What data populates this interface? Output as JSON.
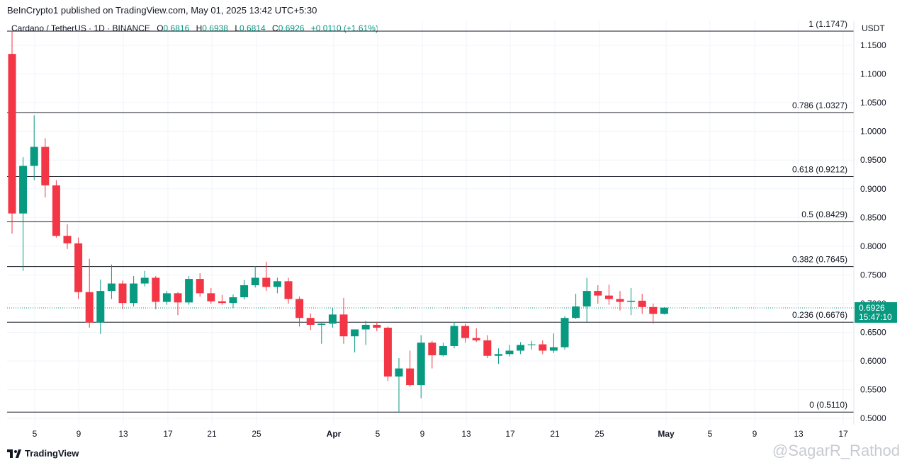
{
  "header": {
    "caption": "BeInCrypto1 published on TradingView.com, May 01, 2025 13:42 UTC+5:30",
    "symbol": "Cardano / TetherUS · 1D · BINANCE",
    "ohlc": {
      "o_label": "O",
      "o": "0.6816",
      "h_label": "H",
      "h": "0.6938",
      "l_label": "L",
      "l": "0.6814",
      "c_label": "C",
      "c": "0.6926",
      "change": "+0.0110 (+1.61%)"
    },
    "unit": "USDT"
  },
  "price_tag": {
    "price": "0.6926",
    "countdown": "15:47:10"
  },
  "footer": {
    "brand": "TradingView",
    "watermark": "@SagarR_Rathod"
  },
  "colors": {
    "up": "#089981",
    "down": "#f23645",
    "fib_line": "#131722",
    "grid": "#f0f3fa"
  },
  "chart_data": {
    "type": "candlestick",
    "y_ticks": [
      "1.1500",
      "1.1000",
      "1.0500",
      "1.0000",
      "0.9500",
      "0.9000",
      "0.8500",
      "0.8000",
      "0.7500",
      "0.7000",
      "0.6500",
      "0.6000",
      "0.5500",
      "0.5000"
    ],
    "ylim": [
      0.493,
      1.2
    ],
    "x_ticks": [
      "5",
      "9",
      "13",
      "17",
      "21",
      "25",
      "Apr",
      "5",
      "9",
      "13",
      "17",
      "21",
      "25",
      "May",
      "5",
      "9",
      "13",
      "17"
    ],
    "fib_levels": [
      {
        "label": "1 (1.1747)",
        "value": 1.1747
      },
      {
        "label": "0.786 (1.0327)",
        "value": 1.0327
      },
      {
        "label": "0.618 (0.9212)",
        "value": 0.9212
      },
      {
        "label": "0.5 (0.8429)",
        "value": 0.8429
      },
      {
        "label": "0.382 (0.7645)",
        "value": 0.7645
      },
      {
        "label": "0.236 (0.6676)",
        "value": 0.6676
      },
      {
        "label": "0 (0.5110)",
        "value": 0.511
      }
    ],
    "current_price": 0.6926,
    "candles": [
      {
        "o": 1.135,
        "h": 1.175,
        "l": 0.822,
        "c": 0.857
      },
      {
        "o": 0.857,
        "h": 0.955,
        "l": 0.757,
        "c": 0.94
      },
      {
        "o": 0.94,
        "h": 1.028,
        "l": 0.915,
        "c": 0.973
      },
      {
        "o": 0.973,
        "h": 0.988,
        "l": 0.885,
        "c": 0.906
      },
      {
        "o": 0.906,
        "h": 0.915,
        "l": 0.815,
        "c": 0.818
      },
      {
        "o": 0.818,
        "h": 0.838,
        "l": 0.795,
        "c": 0.805
      },
      {
        "o": 0.805,
        "h": 0.815,
        "l": 0.708,
        "c": 0.72
      },
      {
        "o": 0.72,
        "h": 0.778,
        "l": 0.658,
        "c": 0.667
      },
      {
        "o": 0.667,
        "h": 0.742,
        "l": 0.647,
        "c": 0.722
      },
      {
        "o": 0.722,
        "h": 0.768,
        "l": 0.708,
        "c": 0.735
      },
      {
        "o": 0.735,
        "h": 0.74,
        "l": 0.69,
        "c": 0.701
      },
      {
        "o": 0.701,
        "h": 0.748,
        "l": 0.695,
        "c": 0.735
      },
      {
        "o": 0.735,
        "h": 0.757,
        "l": 0.73,
        "c": 0.745
      },
      {
        "o": 0.745,
        "h": 0.748,
        "l": 0.69,
        "c": 0.703
      },
      {
        "o": 0.703,
        "h": 0.722,
        "l": 0.698,
        "c": 0.718
      },
      {
        "o": 0.718,
        "h": 0.72,
        "l": 0.68,
        "c": 0.702
      },
      {
        "o": 0.702,
        "h": 0.748,
        "l": 0.698,
        "c": 0.743
      },
      {
        "o": 0.743,
        "h": 0.753,
        "l": 0.712,
        "c": 0.718
      },
      {
        "o": 0.718,
        "h": 0.727,
        "l": 0.7,
        "c": 0.704
      },
      {
        "o": 0.704,
        "h": 0.715,
        "l": 0.698,
        "c": 0.701
      },
      {
        "o": 0.701,
        "h": 0.716,
        "l": 0.692,
        "c": 0.711
      },
      {
        "o": 0.711,
        "h": 0.741,
        "l": 0.707,
        "c": 0.732
      },
      {
        "o": 0.732,
        "h": 0.765,
        "l": 0.728,
        "c": 0.745
      },
      {
        "o": 0.745,
        "h": 0.773,
        "l": 0.722,
        "c": 0.729
      },
      {
        "o": 0.729,
        "h": 0.745,
        "l": 0.718,
        "c": 0.739
      },
      {
        "o": 0.739,
        "h": 0.745,
        "l": 0.7,
        "c": 0.708
      },
      {
        "o": 0.708,
        "h": 0.712,
        "l": 0.66,
        "c": 0.675
      },
      {
        "o": 0.675,
        "h": 0.683,
        "l": 0.654,
        "c": 0.663
      },
      {
        "o": 0.663,
        "h": 0.668,
        "l": 0.63,
        "c": 0.665
      },
      {
        "o": 0.665,
        "h": 0.692,
        "l": 0.658,
        "c": 0.681
      },
      {
        "o": 0.681,
        "h": 0.71,
        "l": 0.63,
        "c": 0.643
      },
      {
        "o": 0.643,
        "h": 0.655,
        "l": 0.615,
        "c": 0.655
      },
      {
        "o": 0.655,
        "h": 0.67,
        "l": 0.628,
        "c": 0.663
      },
      {
        "o": 0.663,
        "h": 0.668,
        "l": 0.652,
        "c": 0.658
      },
      {
        "o": 0.658,
        "h": 0.66,
        "l": 0.565,
        "c": 0.573
      },
      {
        "o": 0.573,
        "h": 0.605,
        "l": 0.51,
        "c": 0.587
      },
      {
        "o": 0.587,
        "h": 0.618,
        "l": 0.555,
        "c": 0.558
      },
      {
        "o": 0.558,
        "h": 0.645,
        "l": 0.535,
        "c": 0.632
      },
      {
        "o": 0.632,
        "h": 0.635,
        "l": 0.587,
        "c": 0.61
      },
      {
        "o": 0.61,
        "h": 0.632,
        "l": 0.608,
        "c": 0.626
      },
      {
        "o": 0.626,
        "h": 0.668,
        "l": 0.622,
        "c": 0.661
      },
      {
        "o": 0.661,
        "h": 0.665,
        "l": 0.632,
        "c": 0.64
      },
      {
        "o": 0.64,
        "h": 0.657,
        "l": 0.633,
        "c": 0.636
      },
      {
        "o": 0.636,
        "h": 0.645,
        "l": 0.605,
        "c": 0.609
      },
      {
        "o": 0.609,
        "h": 0.622,
        "l": 0.595,
        "c": 0.612
      },
      {
        "o": 0.612,
        "h": 0.628,
        "l": 0.608,
        "c": 0.618
      },
      {
        "o": 0.618,
        "h": 0.633,
        "l": 0.612,
        "c": 0.628
      },
      {
        "o": 0.628,
        "h": 0.635,
        "l": 0.62,
        "c": 0.629
      },
      {
        "o": 0.629,
        "h": 0.636,
        "l": 0.612,
        "c": 0.618
      },
      {
        "o": 0.618,
        "h": 0.648,
        "l": 0.614,
        "c": 0.624
      },
      {
        "o": 0.624,
        "h": 0.678,
        "l": 0.62,
        "c": 0.675
      },
      {
        "o": 0.675,
        "h": 0.717,
        "l": 0.673,
        "c": 0.695
      },
      {
        "o": 0.695,
        "h": 0.745,
        "l": 0.668,
        "c": 0.722
      },
      {
        "o": 0.722,
        "h": 0.732,
        "l": 0.7,
        "c": 0.714
      },
      {
        "o": 0.714,
        "h": 0.733,
        "l": 0.698,
        "c": 0.708
      },
      {
        "o": 0.708,
        "h": 0.722,
        "l": 0.688,
        "c": 0.703
      },
      {
        "o": 0.703,
        "h": 0.727,
        "l": 0.68,
        "c": 0.705
      },
      {
        "o": 0.705,
        "h": 0.717,
        "l": 0.682,
        "c": 0.694
      },
      {
        "o": 0.694,
        "h": 0.7,
        "l": 0.665,
        "c": 0.682
      },
      {
        "o": 0.682,
        "h": 0.694,
        "l": 0.681,
        "c": 0.693
      }
    ]
  }
}
